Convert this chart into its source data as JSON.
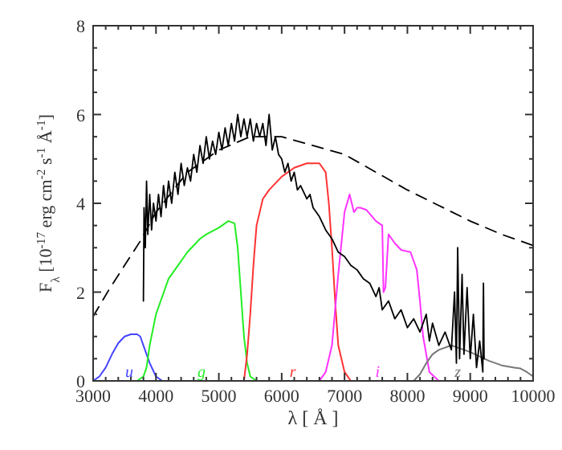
{
  "chart_data": {
    "type": "line",
    "xlabel": "λ [ Å ]",
    "ylabel": "F$_{λ}$ [10$^{-17}$ erg cm$^{-2}$ s$^{-1}$ Å$^{-1}$]",
    "xlim": [
      3000,
      10000
    ],
    "ylim": [
      0,
      8
    ],
    "xticks": [
      3000,
      {
        "value": 3200,
        "label": null
      },
      {
        "value": 3400,
        "label": null
      },
      {
        "value": 3600,
        "label": null
      },
      {
        "value": 3800,
        "label": null
      },
      4000,
      {
        "value": 4200,
        "label": null
      },
      {
        "value": 4400,
        "label": null
      },
      {
        "value": 4600,
        "label": null
      },
      {
        "value": 4800,
        "label": null
      },
      5000,
      {
        "value": 5200,
        "label": null
      },
      {
        "value": 5400,
        "label": null
      },
      {
        "value": 5600,
        "label": null
      },
      {
        "value": 5800,
        "label": null
      },
      6000,
      {
        "value": 6200,
        "label": null
      },
      {
        "value": 6400,
        "label": null
      },
      {
        "value": 6600,
        "label": null
      },
      {
        "value": 6800,
        "label": null
      },
      7000,
      {
        "value": 7200,
        "label": null
      },
      {
        "value": 7400,
        "label": null
      },
      {
        "value": 7600,
        "label": null
      },
      {
        "value": 7800,
        "label": null
      },
      8000,
      {
        "value": 8200,
        "label": null
      },
      {
        "value": 8400,
        "label": null
      },
      {
        "value": 8600,
        "label": null
      },
      {
        "value": 8800,
        "label": null
      },
      9000,
      {
        "value": 9200,
        "label": null
      },
      {
        "value": 9400,
        "label": null
      },
      {
        "value": 9600,
        "label": null
      },
      {
        "value": 9800,
        "label": null
      },
      10000
    ],
    "yticks": [
      0,
      {
        "value": 0.5,
        "label": null
      },
      {
        "value": 1,
        "label": null
      },
      {
        "value": 1.5,
        "label": null
      },
      2,
      {
        "value": 2.5,
        "label": null
      },
      {
        "value": 3,
        "label": null
      },
      {
        "value": 3.5,
        "label": null
      },
      4,
      {
        "value": 4.5,
        "label": null
      },
      {
        "value": 5,
        "label": null
      },
      {
        "value": 5.5,
        "label": null
      },
      6,
      {
        "value": 6.5,
        "label": null
      },
      {
        "value": 7,
        "label": null
      },
      {
        "value": 7.5,
        "label": null
      },
      8
    ],
    "grid": false,
    "series": [
      {
        "name": "u",
        "color": "#4444ff",
        "x": [
          3000,
          3100,
          3200,
          3300,
          3400,
          3500,
          3600,
          3700,
          3750,
          3800,
          3850,
          3900,
          4000,
          4100
        ],
        "values": [
          0,
          0.1,
          0.3,
          0.6,
          0.85,
          1.0,
          1.05,
          1.05,
          1.0,
          0.8,
          0.6,
          0.4,
          0.1,
          0
        ]
      },
      {
        "name": "g",
        "color": "#22ee22",
        "x": [
          3700,
          3800,
          3850,
          3900,
          4000,
          4100,
          4200,
          4350,
          4500,
          4700,
          4800,
          5000,
          5150,
          5250,
          5300,
          5350,
          5400,
          5450,
          5500,
          5600
        ],
        "values": [
          0,
          0.1,
          0.3,
          0.8,
          1.5,
          1.9,
          2.3,
          2.6,
          2.9,
          3.2,
          3.3,
          3.45,
          3.6,
          3.55,
          3.0,
          2.0,
          1.0,
          0.4,
          0.1,
          0
        ]
      },
      {
        "name": "r",
        "color": "#ff3333",
        "x": [
          5400,
          5450,
          5500,
          5550,
          5600,
          5700,
          5800,
          6000,
          6200,
          6400,
          6600,
          6700,
          6750,
          6800,
          6850,
          6900,
          7000,
          7100
        ],
        "values": [
          0,
          0.6,
          1.5,
          2.6,
          3.5,
          4.1,
          4.3,
          4.6,
          4.8,
          4.9,
          4.9,
          4.7,
          4.0,
          3.0,
          1.8,
          0.8,
          0.2,
          0
        ]
      },
      {
        "name": "i",
        "color": "#ff33ff",
        "x": [
          6600,
          6700,
          6800,
          6900,
          7000,
          7080,
          7150,
          7200,
          7250,
          7350,
          7500,
          7600,
          7620,
          7650,
          7700,
          7800,
          7900,
          8050,
          8150,
          8200,
          8250,
          8350,
          8500
        ],
        "values": [
          0,
          0.2,
          0.8,
          2.4,
          3.8,
          4.2,
          3.8,
          3.9,
          3.9,
          3.85,
          3.6,
          3.5,
          2.0,
          2.1,
          3.3,
          3.1,
          2.95,
          2.9,
          2.5,
          1.8,
          1.0,
          0.2,
          0
        ]
      },
      {
        "name": "z",
        "color": "#777777",
        "x": [
          8100,
          8200,
          8300,
          8400,
          8500,
          8700,
          9000,
          9300,
          9500,
          9700,
          9800,
          9900,
          10000
        ],
        "values": [
          0,
          0.15,
          0.4,
          0.6,
          0.7,
          0.8,
          0.65,
          0.45,
          0.35,
          0.3,
          0.28,
          0.2,
          0.1
        ]
      },
      {
        "color": "#000000",
        "line_style": "dashed",
        "x": [
          3000,
          3250,
          3500,
          3750,
          4000,
          4500,
          5000,
          5500,
          6000,
          6500,
          7000,
          7500,
          8000,
          8500,
          9000,
          9500,
          10000
        ],
        "values": [
          1.45,
          2.05,
          2.6,
          3.15,
          3.8,
          4.7,
          5.2,
          5.5,
          5.5,
          5.3,
          5.1,
          4.7,
          4.3,
          3.95,
          3.6,
          3.3,
          3.05
        ]
      },
      {
        "color": "#000000",
        "x": [
          3800,
          3810,
          3830,
          3850,
          3870,
          3900,
          3930,
          3960,
          4000,
          4040,
          4080,
          4120,
          4160,
          4200,
          4250,
          4300,
          4350,
          4400,
          4450,
          4500,
          4550,
          4600,
          4650,
          4700,
          4750,
          4800,
          4850,
          4900,
          4950,
          5000,
          5050,
          5100,
          5150,
          5200,
          5250,
          5300,
          5350,
          5400,
          5450,
          5500,
          5550,
          5600,
          5650,
          5700,
          5750,
          5800,
          5850,
          5900,
          5950,
          6000,
          6050,
          6100,
          6150,
          6200,
          6250,
          6300,
          6400,
          6450,
          6500,
          6600,
          6700,
          6800,
          6900,
          7000,
          7100,
          7200,
          7300,
          7400,
          7500,
          7550,
          7600,
          7700,
          7800,
          7900,
          8000,
          8100,
          8200,
          8300,
          8350,
          8400,
          8500,
          8600,
          8700,
          8750,
          8780,
          8800,
          8830,
          8870,
          8900,
          8950,
          9000,
          9050,
          9100,
          9150,
          9200,
          9210,
          9220
        ],
        "values": [
          1.8,
          3.9,
          3.0,
          4.5,
          3.3,
          4.2,
          3.4,
          4.0,
          3.6,
          4.2,
          3.7,
          4.4,
          3.9,
          4.5,
          4.0,
          4.7,
          4.2,
          4.9,
          4.4,
          4.8,
          4.5,
          5.1,
          4.7,
          5.3,
          4.9,
          5.5,
          5.0,
          5.4,
          5.1,
          5.6,
          5.2,
          5.7,
          5.3,
          5.8,
          5.4,
          6.0,
          5.5,
          5.9,
          5.5,
          5.9,
          5.4,
          5.8,
          5.5,
          5.8,
          5.3,
          6.0,
          5.2,
          5.5,
          5.1,
          5.0,
          4.7,
          4.9,
          4.5,
          4.7,
          4.3,
          4.4,
          4.1,
          4.2,
          3.9,
          3.7,
          3.4,
          3.2,
          2.9,
          2.8,
          2.6,
          2.5,
          2.3,
          2.2,
          1.9,
          2.1,
          1.6,
          1.8,
          1.4,
          1.6,
          1.2,
          1.4,
          1.1,
          1.5,
          0.9,
          1.3,
          0.8,
          1.1,
          0.7,
          2.0,
          0.4,
          3.0,
          0.5,
          2.4,
          0.6,
          2.1,
          0.5,
          1.5,
          0.3,
          0.9,
          0.2,
          2.2,
          0.5
        ]
      }
    ]
  }
}
